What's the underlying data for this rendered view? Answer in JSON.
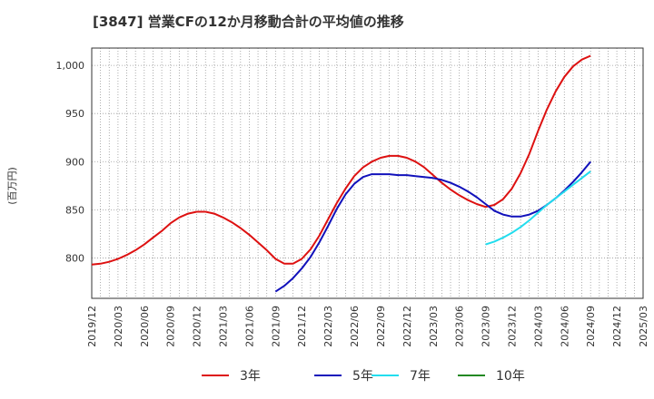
{
  "chart_data": {
    "type": "line",
    "title": "[3847]  営業CFの12か月移動合計の平均値の推移",
    "ylabel": "(百万円)",
    "xlabel": "",
    "x_ticks": [
      "2019/12",
      "2020/03",
      "2020/06",
      "2020/09",
      "2020/12",
      "2021/03",
      "2021/06",
      "2021/09",
      "2021/12",
      "2022/03",
      "2022/06",
      "2022/09",
      "2022/12",
      "2023/03",
      "2023/06",
      "2023/09",
      "2023/12",
      "2024/03",
      "2024/06",
      "2024/09",
      "2024/12",
      "2025/03"
    ],
    "y_ticks": [
      800,
      850,
      900,
      950,
      1000
    ],
    "y_tick_labels": [
      "800",
      "850",
      "900",
      "950",
      "1,000"
    ],
    "ylim": [
      758,
      1018
    ],
    "grid": true,
    "legend_position": "bottom",
    "series": [
      {
        "name": "3年",
        "color": "#dd1111",
        "points": [
          [
            "2019/12",
            793
          ],
          [
            "2020/01",
            794
          ],
          [
            "2020/02",
            796
          ],
          [
            "2020/03",
            799
          ],
          [
            "2020/04",
            803
          ],
          [
            "2020/05",
            808
          ],
          [
            "2020/06",
            814
          ],
          [
            "2020/07",
            821
          ],
          [
            "2020/08",
            828
          ],
          [
            "2020/09",
            836
          ],
          [
            "2020/10",
            842
          ],
          [
            "2020/11",
            846
          ],
          [
            "2020/12",
            848
          ],
          [
            "2021/01",
            848
          ],
          [
            "2021/02",
            846
          ],
          [
            "2021/03",
            842
          ],
          [
            "2021/04",
            837
          ],
          [
            "2021/05",
            831
          ],
          [
            "2021/06",
            824
          ],
          [
            "2021/07",
            816
          ],
          [
            "2021/08",
            808
          ],
          [
            "2021/09",
            799
          ],
          [
            "2021/10",
            794
          ],
          [
            "2021/11",
            794
          ],
          [
            "2021/12",
            799
          ],
          [
            "2022/01",
            809
          ],
          [
            "2022/02",
            823
          ],
          [
            "2022/03",
            840
          ],
          [
            "2022/04",
            857
          ],
          [
            "2022/05",
            872
          ],
          [
            "2022/06",
            885
          ],
          [
            "2022/07",
            894
          ],
          [
            "2022/08",
            900
          ],
          [
            "2022/09",
            904
          ],
          [
            "2022/10",
            906
          ],
          [
            "2022/11",
            906
          ],
          [
            "2022/12",
            904
          ],
          [
            "2023/01",
            900
          ],
          [
            "2023/02",
            894
          ],
          [
            "2023/03",
            886
          ],
          [
            "2023/04",
            878
          ],
          [
            "2023/05",
            871
          ],
          [
            "2023/06",
            865
          ],
          [
            "2023/07",
            860
          ],
          [
            "2023/08",
            856
          ],
          [
            "2023/09",
            853
          ],
          [
            "2023/10",
            855
          ],
          [
            "2023/11",
            861
          ],
          [
            "2023/12",
            872
          ],
          [
            "2024/01",
            888
          ],
          [
            "2024/02",
            908
          ],
          [
            "2024/03",
            932
          ],
          [
            "2024/04",
            954
          ],
          [
            "2024/05",
            973
          ],
          [
            "2024/06",
            988
          ],
          [
            "2024/07",
            999
          ],
          [
            "2024/08",
            1006
          ],
          [
            "2024/09",
            1010
          ]
        ]
      },
      {
        "name": "5年",
        "color": "#1111bb",
        "points": [
          [
            "2021/09",
            765
          ],
          [
            "2021/10",
            771
          ],
          [
            "2021/11",
            779
          ],
          [
            "2021/12",
            789
          ],
          [
            "2022/01",
            801
          ],
          [
            "2022/02",
            816
          ],
          [
            "2022/03",
            833
          ],
          [
            "2022/04",
            851
          ],
          [
            "2022/05",
            866
          ],
          [
            "2022/06",
            877
          ],
          [
            "2022/07",
            884
          ],
          [
            "2022/08",
            887
          ],
          [
            "2022/09",
            887
          ],
          [
            "2022/10",
            887
          ],
          [
            "2022/11",
            886
          ],
          [
            "2022/12",
            886
          ],
          [
            "2023/01",
            885
          ],
          [
            "2023/02",
            884
          ],
          [
            "2023/03",
            883
          ],
          [
            "2023/04",
            881
          ],
          [
            "2023/05",
            878
          ],
          [
            "2023/06",
            874
          ],
          [
            "2023/07",
            869
          ],
          [
            "2023/08",
            863
          ],
          [
            "2023/09",
            856
          ],
          [
            "2023/10",
            849
          ],
          [
            "2023/11",
            845
          ],
          [
            "2023/12",
            843
          ],
          [
            "2024/01",
            843
          ],
          [
            "2024/02",
            845
          ],
          [
            "2024/03",
            849
          ],
          [
            "2024/04",
            855
          ],
          [
            "2024/05",
            862
          ],
          [
            "2024/06",
            870
          ],
          [
            "2024/07",
            879
          ],
          [
            "2024/08",
            889
          ],
          [
            "2024/09",
            900
          ]
        ]
      },
      {
        "name": "7年",
        "color": "#22ddee",
        "points": [
          [
            "2023/09",
            814
          ],
          [
            "2023/10",
            817
          ],
          [
            "2023/11",
            821
          ],
          [
            "2023/12",
            826
          ],
          [
            "2024/01",
            832
          ],
          [
            "2024/02",
            839
          ],
          [
            "2024/03",
            847
          ],
          [
            "2024/04",
            855
          ],
          [
            "2024/05",
            862
          ],
          [
            "2024/06",
            869
          ],
          [
            "2024/07",
            876
          ],
          [
            "2024/08",
            883
          ],
          [
            "2024/09",
            890
          ]
        ]
      },
      {
        "name": "10年",
        "color": "#228822",
        "points": []
      }
    ]
  }
}
